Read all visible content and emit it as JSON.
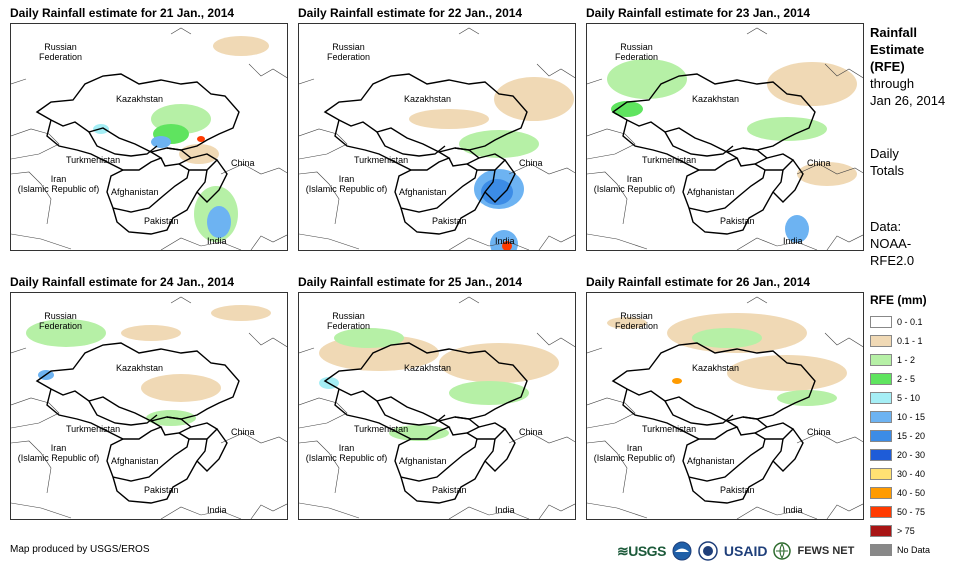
{
  "panels": [
    {
      "title": "Daily Rainfall estimate for 21 Jan., 2014"
    },
    {
      "title": "Daily Rainfall estimate for 22 Jan., 2014"
    },
    {
      "title": "Daily Rainfall estimate for 23 Jan., 2014"
    },
    {
      "title": "Daily Rainfall estimate for 24 Jan., 2014"
    },
    {
      "title": "Daily Rainfall estimate for 25 Jan., 2014"
    },
    {
      "title": "Daily Rainfall estimate for 26 Jan., 2014"
    }
  ],
  "countries": {
    "russia_line1": "Russian",
    "russia_line2": "Federation",
    "kazakhstan": "Kazakhstan",
    "turkmenistan": "Turkmenistan",
    "china": "China",
    "iran_line1": "Iran",
    "iran_line2": "(Islamic Republic of)",
    "afghanistan": "Afghanistan",
    "pakistan": "Pakistan",
    "india": "India"
  },
  "sidebar": {
    "title_line1": "Rainfall",
    "title_line2": "Estimate",
    "title_line3": "(RFE)",
    "through": "through",
    "date": "Jan 26, 2014",
    "totals_line1": "Daily",
    "totals_line2": "Totals",
    "data_line1": "Data:",
    "data_line2": "NOAA-",
    "data_line3": "RFE2.0"
  },
  "legend": {
    "title": "RFE (mm)",
    "items": [
      {
        "label": "0 - 0.1",
        "color": "#ffffff"
      },
      {
        "label": "0.1 - 1",
        "color": "#f0d9b5"
      },
      {
        "label": "1 - 2",
        "color": "#b6f0a6"
      },
      {
        "label": "2 - 5",
        "color": "#5fe45f"
      },
      {
        "label": "5 - 10",
        "color": "#a5eef5"
      },
      {
        "label": "10 - 15",
        "color": "#6db3f2"
      },
      {
        "label": "15 - 20",
        "color": "#3c8ce6"
      },
      {
        "label": "20 - 30",
        "color": "#1e5cd8"
      },
      {
        "label": "30 - 40",
        "color": "#ffe173"
      },
      {
        "label": "40 - 50",
        "color": "#ff9b00"
      },
      {
        "label": "50 - 75",
        "color": "#ff3a00"
      },
      {
        "label": "> 75",
        "color": "#a81515"
      },
      {
        "label": "No Data",
        "color": "#888888"
      }
    ]
  },
  "footer": {
    "credit": "Map produced by USGS/EROS"
  },
  "logos": {
    "usgs": "USGS",
    "usaid": "USAID",
    "fews": "FEWS NET"
  }
}
